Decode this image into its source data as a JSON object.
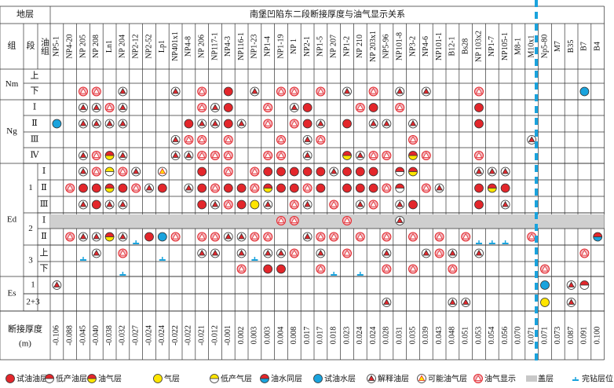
{
  "header": {
    "stratum": "地层",
    "title": "南堡凹陷东二段断接厚度与油气显示关系",
    "group": "组",
    "section": "段",
    "oil_group": "油组",
    "thickness_label": [
      "断接厚度",
      "(m)"
    ]
  },
  "wells": [
    "NP5-1",
    "NP4-20",
    "NP 205",
    "NP 208",
    "Ln1",
    "NP 204",
    "NP2-12",
    "NP2-52",
    "Lp1",
    "NP401x1",
    "NP4-8",
    "NP 206",
    "NP117-1",
    "NP4-3",
    "NP116-1",
    "NP1-23",
    "NP1-4",
    "NP1-19",
    "NP 1",
    "NP2-1",
    "NP1-5",
    "NP 207",
    "NP1-2",
    "NP 210",
    "NP 203x1",
    "NP5-96",
    "NP101-8",
    "NP3-2",
    "NP4-6",
    "NP101-1",
    "B12-1",
    "Bs28",
    "NP 103x2",
    "NP1-7",
    "NP105-1",
    "M8-1",
    "M10x1",
    "Np5-80",
    "M7",
    "B35",
    "B7",
    "B4"
  ],
  "thickness": [
    "-0.106",
    "-0.088",
    "-0.045",
    "-0.040",
    "-0.038",
    "-0.032",
    "-0.027",
    "-0.024",
    "-0.024",
    "-0.022",
    "-0.022",
    "-0.021",
    "-0.012",
    "-0.001",
    "0.002",
    "0.003",
    "0.003",
    "0.004",
    "0.008",
    "0.017",
    "0.017",
    "0.018",
    "0.023",
    "0.024",
    "0.024",
    "0.028",
    "0.031",
    "0.035",
    "0.039",
    "0.043",
    "0.048",
    "0.051",
    "0.053",
    "0.054",
    "0.056",
    "0.070",
    "0.071",
    "0.071",
    "0.073",
    "0.087",
    "0.091",
    "0.100"
  ],
  "legend": [
    "试油油层",
    "低产油层",
    "油气层",
    "气层",
    "低产气层",
    "油水同层",
    "试油水层",
    "解释油层",
    "可能油气层",
    "油气显示",
    "盖层",
    "完钻层位"
  ],
  "groups": [
    {
      "name": "Nm",
      "sections": [
        {
          "name": null,
          "layers": [
            {
              "name": "上",
              "cells": [
                null,
                null,
                null,
                null,
                null,
                null,
                null,
                null,
                null,
                null,
                null,
                null,
                null,
                null,
                null,
                null,
                null,
                null,
                null,
                null,
                null,
                null,
                null,
                null,
                null,
                null,
                null,
                null,
                null,
                null,
                null,
                null,
                null,
                null,
                null,
                null,
                null,
                null,
                null,
                null,
                null,
                null
              ]
            },
            {
              "name": "下",
              "cells": [
                null,
                null,
                9,
                9,
                null,
                7,
                null,
                null,
                null,
                7,
                null,
                9,
                null,
                0,
                null,
                7,
                null,
                9,
                9,
                null,
                9,
                null,
                7,
                null,
                9,
                null,
                7,
                null,
                7,
                null,
                null,
                null,
                9,
                null,
                null,
                null,
                null,
                null,
                null,
                null,
                6,
                null
              ]
            }
          ]
        }
      ]
    },
    {
      "name": "Ng",
      "sections": [
        {
          "name": null,
          "layers": [
            {
              "name": "Ⅰ",
              "cells": [
                null,
                null,
                7,
                7,
                9,
                7,
                null,
                null,
                null,
                null,
                null,
                9,
                7,
                0,
                null,
                null,
                9,
                null,
                7,
                0,
                null,
                null,
                null,
                9,
                0,
                null,
                9,
                null,
                null,
                null,
                null,
                null,
                0,
                null,
                null,
                null,
                null,
                null,
                null,
                null,
                null,
                null
              ]
            },
            {
              "name": "Ⅱ",
              "cells": [
                6,
                null,
                7,
                7,
                7,
                7,
                null,
                null,
                null,
                null,
                0,
                7,
                7,
                0,
                7,
                null,
                9,
                null,
                9,
                0,
                7,
                null,
                0,
                null,
                7,
                7,
                null,
                7,
                null,
                null,
                null,
                null,
                0,
                null,
                null,
                null,
                null,
                null,
                null,
                null,
                null,
                null
              ]
            },
            {
              "name": "Ⅲ",
              "cells": [
                null,
                null,
                null,
                null,
                null,
                null,
                null,
                null,
                null,
                7,
                9,
                9,
                null,
                9,
                null,
                null,
                null,
                9,
                null,
                7,
                9,
                null,
                null,
                null,
                null,
                null,
                null,
                9,
                null,
                null,
                null,
                null,
                null,
                null,
                null,
                null,
                7,
                null,
                null,
                null,
                null,
                null
              ]
            },
            {
              "name": "Ⅳ",
              "cells": [
                null,
                null,
                7,
                9,
                2,
                7,
                null,
                null,
                null,
                7,
                7,
                9,
                9,
                9,
                null,
                null,
                9,
                9,
                null,
                7,
                null,
                null,
                2,
                7,
                9,
                9,
                null,
                2,
                9,
                null,
                null,
                null,
                9,
                null,
                null,
                null,
                null,
                null,
                null,
                null,
                null,
                null
              ]
            }
          ]
        }
      ]
    },
    {
      "name": "Ed",
      "sections": [
        {
          "name": "1",
          "layers": [
            {
              "name": "Ⅰ",
              "cells": [
                null,
                null,
                7,
                9,
                4,
                9,
                7,
                null,
                8,
                null,
                null,
                0,
                null,
                9,
                null,
                9,
                0,
                0,
                0,
                0,
                0,
                7,
                0,
                0,
                0,
                null,
                1,
                2,
                null,
                null,
                null,
                null,
                7,
                7,
                7,
                null,
                null,
                null,
                null,
                null,
                null,
                null
              ]
            },
            {
              "name": "Ⅱ",
              "cells": [
                null,
                9,
                0,
                0,
                2,
                0,
                9,
                7,
                0,
                null,
                7,
                0,
                9,
                0,
                0,
                9,
                2,
                0,
                0,
                9,
                0,
                null,
                0,
                0,
                0,
                9,
                1,
                null,
                9,
                7,
                null,
                null,
                0,
                2,
                0,
                null,
                null,
                null,
                null,
                null,
                null,
                null
              ]
            },
            {
              "name": "Ⅲ",
              "cells": [
                null,
                null,
                7,
                0,
                7,
                7,
                null,
                null,
                null,
                null,
                null,
                0,
                7,
                9,
                0,
                3,
                7,
                null,
                9,
                7,
                null,
                9,
                null,
                7,
                9,
                null,
                7,
                0,
                null,
                null,
                null,
                null,
                0,
                null,
                7,
                null,
                null,
                null,
                null,
                null,
                null,
                null
              ]
            }
          ]
        },
        {
          "name": "2",
          "layers": [
            {
              "name": "Ⅰ",
              "cap": 10,
              "cells": [
                null,
                null,
                null,
                null,
                null,
                null,
                null,
                null,
                null,
                null,
                null,
                null,
                null,
                null,
                null,
                null,
                null,
                9,
                9,
                null,
                null,
                null,
                9,
                null,
                null,
                null,
                7,
                null,
                null,
                null,
                null,
                null,
                null,
                null,
                null,
                null,
                null,
                null,
                null,
                null,
                null,
                null
              ]
            },
            {
              "name": "Ⅱ",
              "cells": [
                null,
                9,
                7,
                7,
                2,
                7,
                11,
                0,
                6,
                9,
                null,
                9,
                9,
                7,
                7,
                9,
                9,
                null,
                null,
                7,
                9,
                9,
                null,
                9,
                null,
                9,
                null,
                9,
                null,
                9,
                null,
                9,
                11,
                11,
                11,
                null,
                9,
                null,
                null,
                null,
                null,
                5
              ]
            }
          ]
        },
        {
          "name": "3",
          "layers": [
            {
              "name": "上",
              "cells": [
                null,
                null,
                11,
                7,
                null,
                9,
                null,
                null,
                11,
                null,
                null,
                7,
                7,
                null,
                7,
                11,
                7,
                7,
                9,
                null,
                7,
                null,
                9,
                null,
                null,
                7,
                null,
                null,
                7,
                9,
                7,
                null,
                7,
                null,
                null,
                null,
                null,
                null,
                null,
                null,
                9,
                null
              ]
            },
            {
              "name": "下",
              "cells": [
                null,
                null,
                null,
                null,
                null,
                11,
                null,
                null,
                null,
                null,
                null,
                null,
                null,
                null,
                9,
                null,
                0,
                0,
                null,
                null,
                9,
                11,
                null,
                11,
                null,
                9,
                null,
                9,
                null,
                null,
                9,
                null,
                null,
                null,
                null,
                null,
                null,
                9,
                null,
                null,
                null,
                null
              ]
            }
          ]
        }
      ]
    },
    {
      "name": "Es",
      "sections": [
        {
          "name": "1",
          "layers": [
            {
              "name": null,
              "cells": [
                7,
                null,
                null,
                null,
                null,
                null,
                null,
                null,
                null,
                null,
                null,
                null,
                null,
                null,
                null,
                null,
                null,
                null,
                null,
                null,
                null,
                null,
                null,
                null,
                null,
                null,
                null,
                null,
                null,
                null,
                null,
                null,
                null,
                null,
                null,
                null,
                null,
                6,
                null,
                7,
                1,
                null
              ]
            }
          ]
        },
        {
          "name": "2+3",
          "layers": [
            {
              "name": null,
              "cells": [
                null,
                null,
                null,
                null,
                null,
                null,
                null,
                null,
                null,
                null,
                null,
                null,
                null,
                null,
                null,
                null,
                null,
                null,
                null,
                null,
                null,
                null,
                null,
                null,
                null,
                7,
                null,
                null,
                null,
                null,
                7,
                7,
                null,
                null,
                null,
                null,
                null,
                3,
                null,
                7,
                null,
                null
              ]
            }
          ]
        }
      ]
    }
  ]
}
